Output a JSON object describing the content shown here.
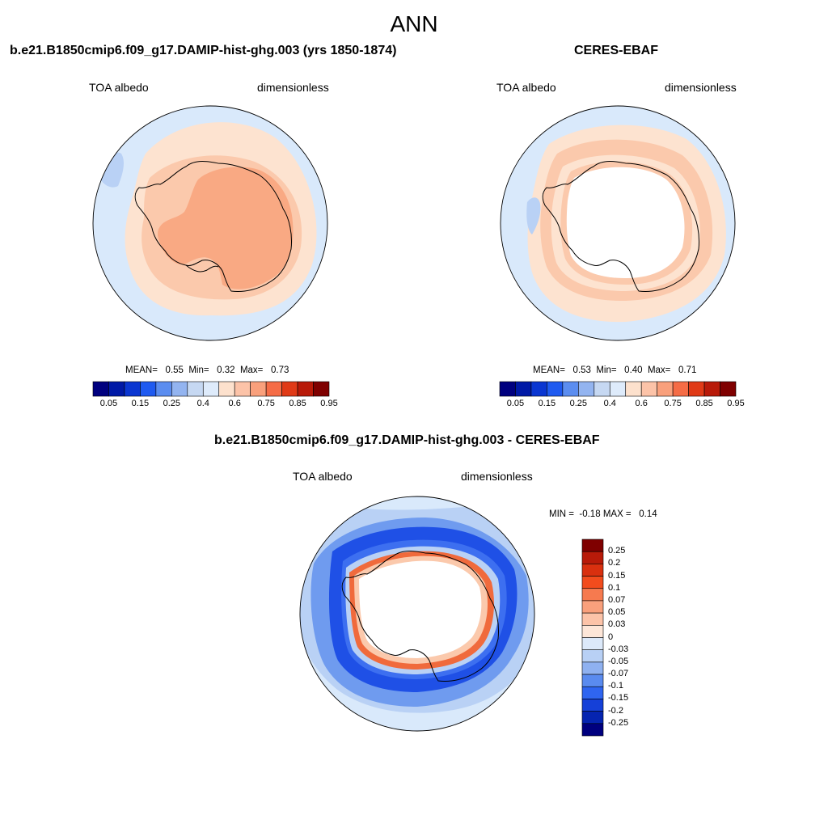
{
  "title": "ANN",
  "panels": [
    {
      "title": "b.e21.B1850cmip6.f09_g17.DAMIP-hist-ghg.003 (yrs 1850-1874)",
      "left_label": "TOA albedo",
      "right_label": "dimensionless",
      "stats": {
        "mean_label": "MEAN=",
        "mean": "0.55",
        "min_label": "Min=",
        "min": "0.32",
        "max_label": "Max=",
        "max": "0.73"
      }
    },
    {
      "title": "CERES-EBAF",
      "left_label": "TOA albedo",
      "right_label": "dimensionless",
      "stats": {
        "mean_label": "MEAN=",
        "mean": "0.53",
        "min_label": "Min=",
        "min": "0.40",
        "max_label": "Max=",
        "max": "0.71"
      }
    },
    {
      "title": "b.e21.B1850cmip6.f09_g17.DAMIP-hist-ghg.003 - CERES-EBAF",
      "left_label": "TOA albedo",
      "right_label": "dimensionless",
      "stats": {
        "min_label": "MIN =",
        "min": "-0.18",
        "max_label": "MAX =",
        "max": "0.14"
      }
    }
  ],
  "colorbar_abs": {
    "labels": [
      "0.05",
      "0.15",
      "0.25",
      "0.4",
      "0.6",
      "0.75",
      "0.85",
      "0.95"
    ],
    "colors": [
      "#00007f",
      "#0019a6",
      "#0a36d1",
      "#1f5af0",
      "#5b8df0",
      "#93b4f0",
      "#c6d8f2",
      "#deebfb",
      "#fde1cd",
      "#fcc3a8",
      "#f9a07c",
      "#f56c46",
      "#e03a17",
      "#b81a09",
      "#7f0000"
    ]
  },
  "colorbar_diff": {
    "labels": [
      "0.25",
      "0.2",
      "0.15",
      "0.1",
      "0.07",
      "0.05",
      "0.03",
      "0",
      "-0.03",
      "-0.05",
      "-0.07",
      "-0.1",
      "-0.15",
      "-0.2",
      "-0.25"
    ],
    "colors": [
      "#7f0000",
      "#b81a09",
      "#d9300f",
      "#f24c1d",
      "#f67a4f",
      "#f9a07c",
      "#fcc3a8",
      "#fde6d8",
      "#dce9fa",
      "#b8d0f5",
      "#8fb1f0",
      "#5a8bef",
      "#2f65f0",
      "#1540d8",
      "#0524b0",
      "#00007f"
    ]
  },
  "map_colors": {
    "ocean_light": "#d9e9fb",
    "pale_orange": "#fde3d0",
    "light_salmon": "#fbc9ac",
    "salmon": "#f9a983",
    "light_blue": "#b9d1f5",
    "mid_blue": "#6f9bef",
    "blue": "#3d6ff0",
    "strong_blue": "#1f50e6",
    "red": "#f06a3c",
    "white": "#ffffff"
  }
}
